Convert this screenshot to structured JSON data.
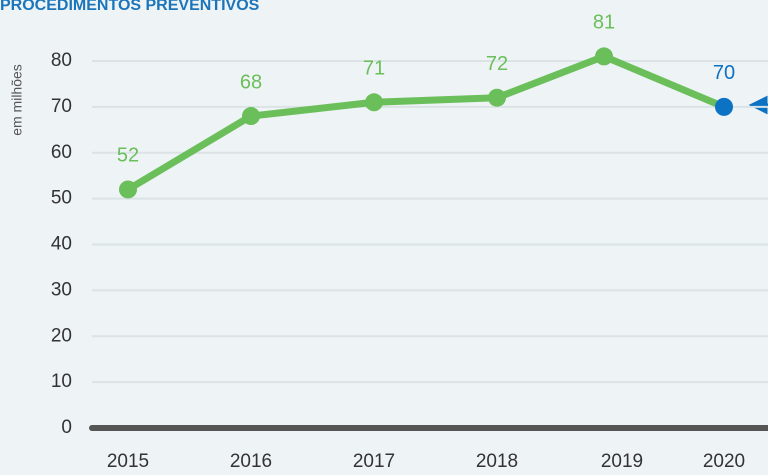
{
  "chart_data": {
    "type": "line",
    "title": "PROCEDIMENTOS PREVENTIVOS",
    "y_label": "em milhões",
    "categories": [
      "2015",
      "2016",
      "2017",
      "2018",
      "2019",
      "2020"
    ],
    "series": [
      {
        "name": "Procedimentos preventivos",
        "color": "#6abf5a",
        "values": [
          52,
          68,
          71,
          72,
          81,
          70
        ]
      }
    ],
    "point_colors": [
      "#6abf5a",
      "#6abf5a",
      "#6abf5a",
      "#6abf5a",
      "#6abf5a",
      "#0c72c4"
    ],
    "ylim": [
      0,
      80
    ],
    "yticks": [
      0,
      10,
      20,
      30,
      40,
      50,
      60,
      70,
      80
    ],
    "grid": true
  }
}
